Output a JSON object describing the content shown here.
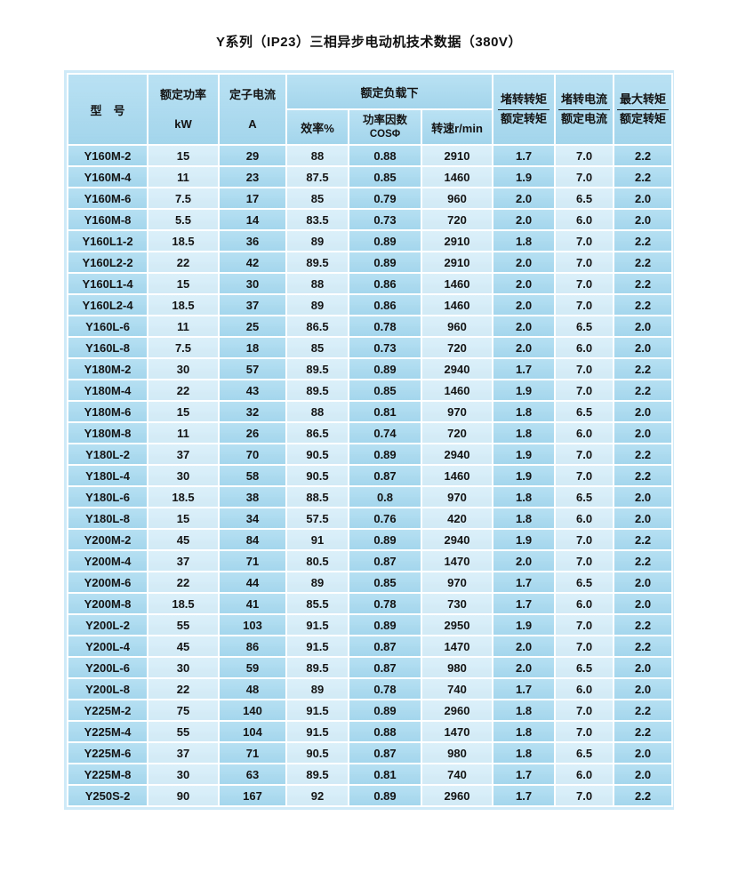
{
  "page_title": "Y系列（IP23）三相异步电动机技术数据（380V）",
  "colors": {
    "cell_medium_blue": "#a6d9f0",
    "cell_light_blue": "#d4edf9",
    "grid_line": "#ffffff",
    "text": "#141414"
  },
  "table": {
    "header": {
      "model": "型　号",
      "rated_power": "额定功率",
      "rated_power_unit": "kW",
      "stator_current": "定子电流",
      "stator_current_unit": "A",
      "rated_load_group": "额定负载下",
      "efficiency": "效率%",
      "power_factor_line1": "功率因数",
      "power_factor_line2": "COSΦ",
      "speed": "转速r/min",
      "locked_torque_top": "堵转转矩",
      "locked_torque_bottom": "额定转矩",
      "locked_current_top": "堵转电流",
      "locked_current_bottom": "额定电流",
      "max_torque_top": "最大转矩",
      "max_torque_bottom": "额定转矩"
    },
    "rows": [
      [
        "Y160M-2",
        "15",
        "29",
        "88",
        "0.88",
        "2910",
        "1.7",
        "7.0",
        "2.2"
      ],
      [
        "Y160M-4",
        "11",
        "23",
        "87.5",
        "0.85",
        "1460",
        "1.9",
        "7.0",
        "2.2"
      ],
      [
        "Y160M-6",
        "7.5",
        "17",
        "85",
        "0.79",
        "960",
        "2.0",
        "6.5",
        "2.0"
      ],
      [
        "Y160M-8",
        "5.5",
        "14",
        "83.5",
        "0.73",
        "720",
        "2.0",
        "6.0",
        "2.0"
      ],
      [
        "Y160L1-2",
        "18.5",
        "36",
        "89",
        "0.89",
        "2910",
        "1.8",
        "7.0",
        "2.2"
      ],
      [
        "Y160L2-2",
        "22",
        "42",
        "89.5",
        "0.89",
        "2910",
        "2.0",
        "7.0",
        "2.2"
      ],
      [
        "Y160L1-4",
        "15",
        "30",
        "88",
        "0.86",
        "1460",
        "2.0",
        "7.0",
        "2.2"
      ],
      [
        "Y160L2-4",
        "18.5",
        "37",
        "89",
        "0.86",
        "1460",
        "2.0",
        "7.0",
        "2.2"
      ],
      [
        "Y160L-6",
        "11",
        "25",
        "86.5",
        "0.78",
        "960",
        "2.0",
        "6.5",
        "2.0"
      ],
      [
        "Y160L-8",
        "7.5",
        "18",
        "85",
        "0.73",
        "720",
        "2.0",
        "6.0",
        "2.0"
      ],
      [
        "Y180M-2",
        "30",
        "57",
        "89.5",
        "0.89",
        "2940",
        "1.7",
        "7.0",
        "2.2"
      ],
      [
        "Y180M-4",
        "22",
        "43",
        "89.5",
        "0.85",
        "1460",
        "1.9",
        "7.0",
        "2.2"
      ],
      [
        "Y180M-6",
        "15",
        "32",
        "88",
        "0.81",
        "970",
        "1.8",
        "6.5",
        "2.0"
      ],
      [
        "Y180M-8",
        "11",
        "26",
        "86.5",
        "0.74",
        "720",
        "1.8",
        "6.0",
        "2.0"
      ],
      [
        "Y180L-2",
        "37",
        "70",
        "90.5",
        "0.89",
        "2940",
        "1.9",
        "7.0",
        "2.2"
      ],
      [
        "Y180L-4",
        "30",
        "58",
        "90.5",
        "0.87",
        "1460",
        "1.9",
        "7.0",
        "2.2"
      ],
      [
        "Y180L-6",
        "18.5",
        "38",
        "88.5",
        "0.8",
        "970",
        "1.8",
        "6.5",
        "2.0"
      ],
      [
        "Y180L-8",
        "15",
        "34",
        "57.5",
        "0.76",
        "420",
        "1.8",
        "6.0",
        "2.0"
      ],
      [
        "Y200M-2",
        "45",
        "84",
        "91",
        "0.89",
        "2940",
        "1.9",
        "7.0",
        "2.2"
      ],
      [
        "Y200M-4",
        "37",
        "71",
        "80.5",
        "0.87",
        "1470",
        "2.0",
        "7.0",
        "2.2"
      ],
      [
        "Y200M-6",
        "22",
        "44",
        "89",
        "0.85",
        "970",
        "1.7",
        "6.5",
        "2.0"
      ],
      [
        "Y200M-8",
        "18.5",
        "41",
        "85.5",
        "0.78",
        "730",
        "1.7",
        "6.0",
        "2.0"
      ],
      [
        "Y200L-2",
        "55",
        "103",
        "91.5",
        "0.89",
        "2950",
        "1.9",
        "7.0",
        "2.2"
      ],
      [
        "Y200L-4",
        "45",
        "86",
        "91.5",
        "0.87",
        "1470",
        "2.0",
        "7.0",
        "2.2"
      ],
      [
        "Y200L-6",
        "30",
        "59",
        "89.5",
        "0.87",
        "980",
        "2.0",
        "6.5",
        "2.0"
      ],
      [
        "Y200L-8",
        "22",
        "48",
        "89",
        "0.78",
        "740",
        "1.7",
        "6.0",
        "2.0"
      ],
      [
        "Y225M-2",
        "75",
        "140",
        "91.5",
        "0.89",
        "2960",
        "1.8",
        "7.0",
        "2.2"
      ],
      [
        "Y225M-4",
        "55",
        "104",
        "91.5",
        "0.88",
        "1470",
        "1.8",
        "7.0",
        "2.2"
      ],
      [
        "Y225M-6",
        "37",
        "71",
        "90.5",
        "0.87",
        "980",
        "1.8",
        "6.5",
        "2.0"
      ],
      [
        "Y225M-8",
        "30",
        "63",
        "89.5",
        "0.81",
        "740",
        "1.7",
        "6.0",
        "2.0"
      ],
      [
        "Y250S-2",
        "90",
        "167",
        "92",
        "0.89",
        "2960",
        "1.7",
        "7.0",
        "2.2"
      ]
    ]
  }
}
